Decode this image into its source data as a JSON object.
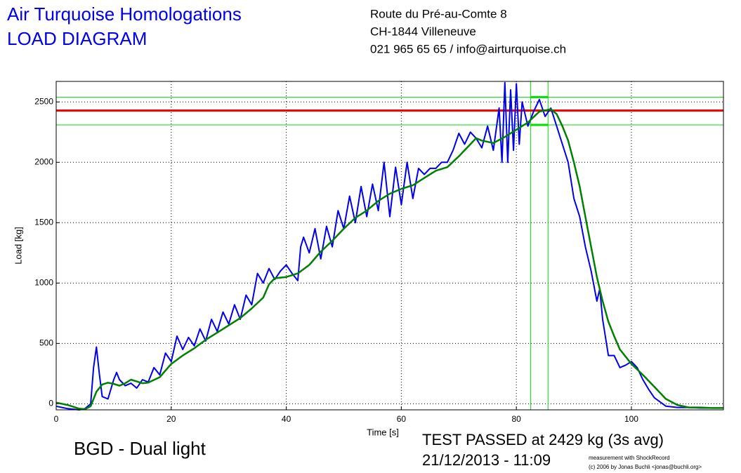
{
  "header": {
    "title": "Air Turquoise Homologations",
    "subtitle": "LOAD DIAGRAM",
    "address": [
      "Route du Pré-au-Comte 8",
      "CH-1844 Villeneuve",
      "021 965 65 65 / info@airturquoise.ch"
    ]
  },
  "footer": {
    "product": "BGD - Dual light",
    "result": "TEST PASSED at 2429 kg (3s avg)",
    "date": "21/12/2013 - 11:09",
    "credit": [
      "measurement with ShockRecord",
      "(c) 2006 by Jonas Buchli <jonas@buchli.org>"
    ]
  },
  "chart_data": {
    "type": "line",
    "x_label": "Time [s]",
    "y_label": "Load [kg]",
    "xlim": [
      0,
      116
    ],
    "ylim": [
      -50,
      2670
    ],
    "xticks": [
      0,
      20,
      40,
      60,
      80,
      100
    ],
    "yticks": [
      0,
      500,
      1000,
      1500,
      2000,
      2500
    ],
    "grid": true,
    "series": [
      {
        "color": "#0000ee",
        "x": [
          0,
          1,
          2,
          3,
          4,
          5,
          6,
          6.5,
          7,
          7.5,
          8,
          9,
          10,
          10.5,
          11,
          12,
          13,
          14,
          15,
          16,
          17,
          18,
          19,
          20,
          21,
          22,
          23,
          24,
          25,
          26,
          27,
          28,
          29,
          30,
          31,
          32,
          33,
          34,
          35,
          36,
          37,
          38,
          39,
          40,
          41,
          42,
          42.5,
          43,
          44,
          45,
          46,
          47,
          48,
          49,
          50,
          51,
          52,
          53,
          54,
          55,
          56,
          57,
          58,
          59,
          60,
          61,
          62,
          63,
          64,
          65,
          66,
          67,
          68,
          69,
          70,
          71,
          72,
          73,
          74,
          75,
          76,
          77,
          77.5,
          78,
          78.5,
          79,
          79.5,
          80,
          80.5,
          81,
          82,
          83,
          84,
          85,
          86,
          87,
          88,
          89,
          90,
          91,
          92,
          93,
          94,
          94.5,
          95,
          96,
          97,
          98,
          99,
          100,
          101,
          102,
          103,
          104,
          106,
          108,
          110,
          112,
          116
        ],
        "values": [
          -20,
          -30,
          -40,
          -45,
          -50,
          -40,
          0,
          300,
          470,
          250,
          60,
          40,
          200,
          260,
          200,
          150,
          170,
          130,
          200,
          180,
          300,
          240,
          420,
          350,
          560,
          450,
          550,
          480,
          620,
          520,
          700,
          600,
          760,
          660,
          820,
          700,
          900,
          820,
          1080,
          1000,
          1120,
          1030,
          1100,
          1150,
          1080,
          1020,
          1300,
          1380,
          1250,
          1450,
          1200,
          1470,
          1300,
          1600,
          1450,
          1720,
          1500,
          1800,
          1550,
          1820,
          1600,
          2000,
          1550,
          1960,
          1650,
          2000,
          1700,
          1950,
          1900,
          1950,
          1950,
          2000,
          2000,
          2100,
          2240,
          2150,
          2250,
          2200,
          2120,
          2300,
          2100,
          2450,
          2000,
          2660,
          2000,
          2600,
          2100,
          2650,
          2150,
          2500,
          2300,
          2420,
          2520,
          2380,
          2450,
          2300,
          2150,
          2000,
          1700,
          1550,
          1300,
          1100,
          850,
          950,
          700,
          400,
          400,
          300,
          320,
          350,
          300,
          200,
          120,
          50,
          -20,
          -30,
          -30,
          -35,
          -35
        ]
      },
      {
        "color": "#008000",
        "x": [
          0,
          2,
          4,
          5,
          6,
          7,
          8,
          9,
          10,
          11,
          12,
          13,
          14,
          15,
          16,
          18,
          20,
          22,
          24,
          26,
          28,
          30,
          32,
          34,
          36,
          37,
          38,
          40,
          42,
          44,
          46,
          48,
          50,
          52,
          54,
          56,
          58,
          60,
          62,
          64,
          66,
          68,
          70,
          72,
          73,
          74,
          76,
          78,
          80,
          82,
          84,
          86,
          87,
          88,
          89,
          90,
          91,
          92,
          93,
          94,
          95,
          96,
          97,
          98,
          100,
          102,
          104,
          106,
          108,
          110,
          112,
          114,
          116
        ],
        "values": [
          10,
          -10,
          -40,
          -45,
          -20,
          100,
          160,
          175,
          165,
          150,
          170,
          200,
          185,
          170,
          175,
          220,
          330,
          400,
          460,
          530,
          590,
          650,
          710,
          790,
          880,
          990,
          1040,
          1050,
          1080,
          1150,
          1260,
          1350,
          1450,
          1540,
          1600,
          1680,
          1740,
          1780,
          1810,
          1870,
          1930,
          1960,
          2050,
          2150,
          2200,
          2180,
          2160,
          2210,
          2270,
          2330,
          2420,
          2440,
          2400,
          2300,
          2180,
          2000,
          1800,
          1550,
          1300,
          1050,
          850,
          680,
          560,
          450,
          330,
          240,
          140,
          40,
          -10,
          -30,
          -30,
          -35,
          -35
        ]
      }
    ],
    "hlines": [
      {
        "value": 2429,
        "color": "#ff0000"
      },
      {
        "value": 2540,
        "color": "#00dd00"
      },
      {
        "value": 2310,
        "color": "#00dd00"
      }
    ],
    "vlines": [
      {
        "value": 82.5,
        "color": "#00dd00"
      },
      {
        "value": 85.5,
        "color": "#00dd00"
      }
    ]
  }
}
